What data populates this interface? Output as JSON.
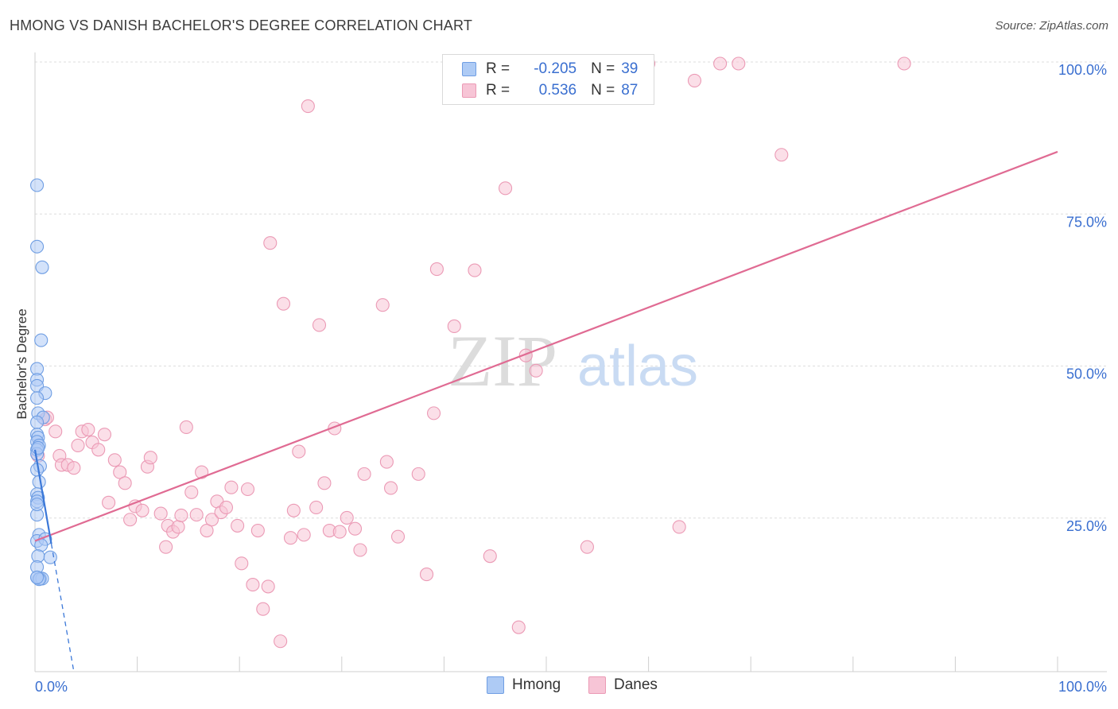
{
  "title": "HMONG VS DANISH BACHELOR'S DEGREE CORRELATION CHART",
  "source": "Source: ZipAtlas.com",
  "watermark": {
    "zip": "ZIP",
    "atlas": "atlas"
  },
  "colors": {
    "hmong_fill": "#aecbf5",
    "hmong_stroke": "#6f9ee3",
    "hmong_line": "#3b78d8",
    "danes_fill": "#f7c5d6",
    "danes_stroke": "#eb9ab5",
    "danes_line": "#e06b93",
    "tick_label": "#3a6fd0",
    "grid": "#dddddd"
  },
  "legend": {
    "r_label": "R =",
    "n_label": "N =",
    "hmong": {
      "r": "-0.205",
      "n": "39"
    },
    "danes": {
      "r": "0.536",
      "n": "87"
    }
  },
  "chart_data": {
    "type": "scatter",
    "title": "HMONG VS DANISH BACHELOR'S DEGREE CORRELATION CHART",
    "xlabel": "",
    "ylabel": "Bachelor's Degree",
    "xlim": [
      0,
      100
    ],
    "ylim": [
      0,
      100
    ],
    "x_tick_labels": [
      {
        "value": 0,
        "label": "0.0%"
      },
      {
        "value": 100,
        "label": "100.0%"
      }
    ],
    "y_tick_labels": [
      {
        "value": 25,
        "label": "25.0%"
      },
      {
        "value": 50,
        "label": "50.0%"
      },
      {
        "value": 75,
        "label": "75.0%"
      },
      {
        "value": 100,
        "label": "100.0%"
      }
    ],
    "series": [
      {
        "name": "Hmong",
        "points": [
          [
            0.2,
            80.0
          ],
          [
            0.2,
            69.9
          ],
          [
            0.7,
            66.5
          ],
          [
            0.6,
            54.5
          ],
          [
            0.2,
            49.8
          ],
          [
            0.2,
            48.0
          ],
          [
            0.2,
            47.0
          ],
          [
            1.0,
            45.8
          ],
          [
            0.2,
            45.0
          ],
          [
            0.3,
            42.5
          ],
          [
            0.8,
            41.8
          ],
          [
            0.2,
            41.0
          ],
          [
            0.2,
            39.0
          ],
          [
            0.3,
            38.5
          ],
          [
            0.2,
            37.8
          ],
          [
            0.4,
            37.2
          ],
          [
            0.2,
            36.5
          ],
          [
            0.2,
            35.8
          ],
          [
            0.5,
            33.8
          ],
          [
            0.2,
            33.2
          ],
          [
            0.4,
            31.2
          ],
          [
            0.2,
            29.2
          ],
          [
            0.3,
            28.6
          ],
          [
            0.2,
            28.0
          ],
          [
            0.2,
            25.8
          ],
          [
            0.4,
            22.5
          ],
          [
            0.2,
            21.5
          ],
          [
            1.0,
            21.8
          ],
          [
            0.6,
            20.8
          ],
          [
            0.3,
            19.0
          ],
          [
            1.5,
            18.8
          ],
          [
            0.2,
            17.2
          ],
          [
            0.2,
            15.5
          ],
          [
            0.5,
            15.3
          ],
          [
            0.7,
            15.3
          ],
          [
            0.4,
            15.2
          ],
          [
            0.2,
            15.5
          ],
          [
            0.2,
            27.5
          ],
          [
            0.3,
            36.8
          ]
        ],
        "trend": {
          "x0": 0.0,
          "y0": 36.5,
          "x1": 1.6,
          "y1": 21.0,
          "dash_to": {
            "x": 3.8,
            "y": 0.0
          }
        }
      },
      {
        "name": "Danes",
        "points": [
          [
            0.3,
            35.5
          ],
          [
            1.0,
            41.5
          ],
          [
            1.2,
            41.8
          ],
          [
            2.0,
            39.5
          ],
          [
            2.4,
            35.5
          ],
          [
            2.6,
            34.0
          ],
          [
            3.2,
            34.0
          ],
          [
            3.8,
            33.5
          ],
          [
            4.2,
            37.2
          ],
          [
            4.6,
            39.5
          ],
          [
            5.2,
            39.8
          ],
          [
            5.6,
            37.7
          ],
          [
            6.2,
            36.5
          ],
          [
            6.8,
            39.0
          ],
          [
            7.2,
            27.8
          ],
          [
            7.8,
            34.8
          ],
          [
            8.3,
            32.8
          ],
          [
            8.8,
            31.0
          ],
          [
            9.3,
            25.0
          ],
          [
            9.8,
            27.2
          ],
          [
            10.5,
            26.5
          ],
          [
            11.0,
            33.7
          ],
          [
            11.3,
            35.2
          ],
          [
            12.3,
            26.0
          ],
          [
            12.8,
            20.5
          ],
          [
            13.0,
            24.0
          ],
          [
            13.5,
            23.0
          ],
          [
            14.0,
            23.8
          ],
          [
            14.3,
            25.7
          ],
          [
            14.8,
            40.2
          ],
          [
            15.3,
            29.5
          ],
          [
            15.8,
            25.8
          ],
          [
            16.3,
            32.8
          ],
          [
            16.8,
            23.2
          ],
          [
            17.3,
            25.0
          ],
          [
            17.8,
            28.0
          ],
          [
            18.2,
            26.2
          ],
          [
            18.7,
            27.0
          ],
          [
            19.2,
            30.3
          ],
          [
            19.8,
            24.0
          ],
          [
            20.2,
            17.8
          ],
          [
            20.8,
            30.0
          ],
          [
            21.3,
            14.3
          ],
          [
            21.8,
            23.2
          ],
          [
            22.3,
            10.3
          ],
          [
            22.8,
            14.0
          ],
          [
            23.0,
            70.5
          ],
          [
            24.0,
            5.0
          ],
          [
            24.3,
            60.5
          ],
          [
            25.0,
            22.0
          ],
          [
            25.3,
            26.5
          ],
          [
            25.8,
            36.2
          ],
          [
            26.3,
            22.5
          ],
          [
            26.7,
            93.0
          ],
          [
            27.5,
            27.0
          ],
          [
            27.8,
            57.0
          ],
          [
            28.3,
            31.0
          ],
          [
            28.8,
            23.2
          ],
          [
            29.3,
            40.0
          ],
          [
            29.8,
            23.0
          ],
          [
            30.5,
            25.3
          ],
          [
            31.3,
            23.5
          ],
          [
            31.8,
            20.0
          ],
          [
            32.2,
            32.5
          ],
          [
            34.0,
            60.3
          ],
          [
            34.4,
            34.5
          ],
          [
            34.8,
            30.2
          ],
          [
            35.5,
            22.2
          ],
          [
            37.5,
            32.5
          ],
          [
            38.3,
            16.0
          ],
          [
            39.0,
            42.5
          ],
          [
            39.3,
            66.2
          ],
          [
            41.0,
            56.8
          ],
          [
            43.0,
            66.0
          ],
          [
            44.5,
            19.0
          ],
          [
            46.0,
            79.5
          ],
          [
            47.3,
            7.3
          ],
          [
            48.0,
            52.0
          ],
          [
            49.0,
            49.5
          ],
          [
            54.0,
            20.5
          ],
          [
            60.0,
            100.0
          ],
          [
            63.0,
            23.8
          ],
          [
            64.5,
            97.2
          ],
          [
            67.0,
            100.0
          ],
          [
            68.8,
            100.0
          ],
          [
            73.0,
            85.0
          ],
          [
            85.0,
            100.0
          ]
        ],
        "trend": {
          "x0": 0.0,
          "y0": 21.5,
          "x1": 100.0,
          "y1": 85.5
        }
      }
    ],
    "legend_position": "top-center",
    "grid": true
  }
}
